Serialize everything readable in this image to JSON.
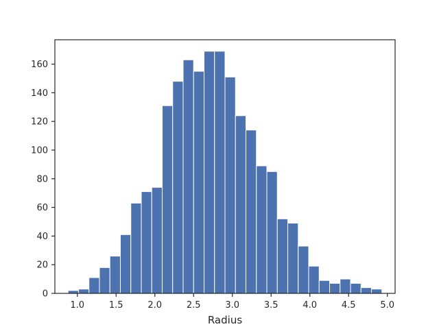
{
  "chart_data": {
    "type": "bar",
    "title": "",
    "xlabel": "Radius",
    "ylabel": "",
    "xlim": [
      0.71,
      5.1
    ],
    "ylim": [
      0,
      177
    ],
    "bar_color": "#4c72b0",
    "edge_color": "#ffffff",
    "grid": false,
    "bins": [
      {
        "x0": 0.88,
        "x1": 1.015,
        "count": 2
      },
      {
        "x0": 1.015,
        "x1": 1.15,
        "count": 3
      },
      {
        "x0": 1.15,
        "x1": 1.285,
        "count": 11
      },
      {
        "x0": 1.285,
        "x1": 1.42,
        "count": 18
      },
      {
        "x0": 1.42,
        "x1": 1.555,
        "count": 26
      },
      {
        "x0": 1.555,
        "x1": 1.69,
        "count": 41
      },
      {
        "x0": 1.69,
        "x1": 1.825,
        "count": 63
      },
      {
        "x0": 1.825,
        "x1": 1.96,
        "count": 71
      },
      {
        "x0": 1.96,
        "x1": 2.095,
        "count": 74
      },
      {
        "x0": 2.095,
        "x1": 2.23,
        "count": 131
      },
      {
        "x0": 2.23,
        "x1": 2.365,
        "count": 148
      },
      {
        "x0": 2.365,
        "x1": 2.5,
        "count": 163
      },
      {
        "x0": 2.5,
        "x1": 2.635,
        "count": 155
      },
      {
        "x0": 2.635,
        "x1": 2.77,
        "count": 169
      },
      {
        "x0": 2.77,
        "x1": 2.905,
        "count": 169
      },
      {
        "x0": 2.905,
        "x1": 3.04,
        "count": 151
      },
      {
        "x0": 3.04,
        "x1": 3.175,
        "count": 124
      },
      {
        "x0": 3.175,
        "x1": 3.31,
        "count": 114
      },
      {
        "x0": 3.31,
        "x1": 3.445,
        "count": 89
      },
      {
        "x0": 3.445,
        "x1": 3.58,
        "count": 85
      },
      {
        "x0": 3.58,
        "x1": 3.715,
        "count": 52
      },
      {
        "x0": 3.715,
        "x1": 3.85,
        "count": 49
      },
      {
        "x0": 3.85,
        "x1": 3.985,
        "count": 33
      },
      {
        "x0": 3.985,
        "x1": 4.12,
        "count": 19
      },
      {
        "x0": 4.12,
        "x1": 4.255,
        "count": 9
      },
      {
        "x0": 4.255,
        "x1": 4.39,
        "count": 7
      },
      {
        "x0": 4.39,
        "x1": 4.525,
        "count": 10
      },
      {
        "x0": 4.525,
        "x1": 4.66,
        "count": 7
      },
      {
        "x0": 4.66,
        "x1": 4.795,
        "count": 4
      },
      {
        "x0": 4.795,
        "x1": 4.93,
        "count": 3
      }
    ],
    "x_ticks": [
      {
        "value": 1.0,
        "label": "1.0"
      },
      {
        "value": 1.5,
        "label": "1.5"
      },
      {
        "value": 2.0,
        "label": "2.0"
      },
      {
        "value": 2.5,
        "label": "2.5"
      },
      {
        "value": 3.0,
        "label": "3.0"
      },
      {
        "value": 3.5,
        "label": "3.5"
      },
      {
        "value": 4.0,
        "label": "4.0"
      },
      {
        "value": 4.5,
        "label": "4.5"
      },
      {
        "value": 5.0,
        "label": "5.0"
      }
    ],
    "y_ticks": [
      {
        "value": 0,
        "label": "0"
      },
      {
        "value": 20,
        "label": "20"
      },
      {
        "value": 40,
        "label": "40"
      },
      {
        "value": 60,
        "label": "60"
      },
      {
        "value": 80,
        "label": "80"
      },
      {
        "value": 100,
        "label": "100"
      },
      {
        "value": 120,
        "label": "120"
      },
      {
        "value": 140,
        "label": "140"
      },
      {
        "value": 160,
        "label": "160"
      }
    ]
  }
}
